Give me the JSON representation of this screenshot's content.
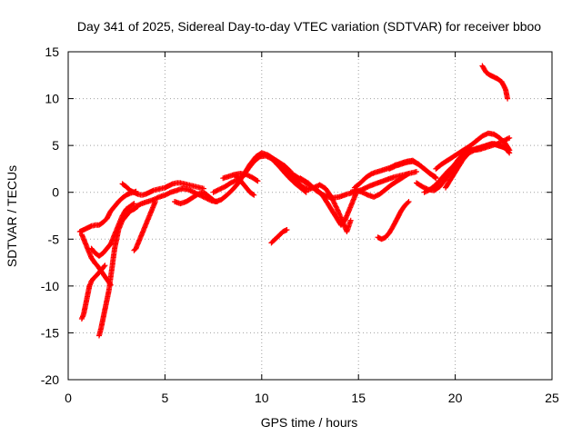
{
  "chart_data": {
    "type": "scatter",
    "title": "Day 341 of 2025, Sidereal Day-to-day VTEC variation (SDTVAR) for receiver bboo",
    "xlabel": "GPS time / hours",
    "ylabel": "SDTVAR / TECUs",
    "xlim": [
      0,
      25
    ],
    "ylim": [
      -20,
      15
    ],
    "xticks": [
      "0",
      "5",
      "10",
      "15",
      "20",
      "25"
    ],
    "yticks": [
      "-20",
      "-15",
      "-10",
      "-5",
      "0",
      "5",
      "10",
      "15"
    ],
    "grid": true,
    "marker": "+",
    "color": "#ff0000",
    "series": [
      {
        "x": [
          0.6,
          0.8,
          1.0,
          1.2,
          1.4,
          1.6,
          1.8,
          2.0,
          2.2,
          2.4,
          2.6,
          2.8,
          3.0,
          3.2,
          3.4,
          3.5
        ],
        "y": [
          -4.2,
          -4.0,
          -3.8,
          -3.6,
          -3.5,
          -3.5,
          -3.2,
          -2.8,
          -2.0,
          -1.5,
          -1.0,
          -0.6,
          -0.3,
          -0.1,
          0.0,
          0.1
        ]
      },
      {
        "x": [
          0.7,
          0.8,
          0.9,
          1.0,
          1.1,
          1.2,
          1.3,
          1.4,
          1.5,
          1.6,
          1.7,
          1.8,
          1.9,
          2.0,
          2.1,
          2.2
        ],
        "y": [
          -4.5,
          -5.0,
          -5.5,
          -6.0,
          -6.5,
          -7.0,
          -7.3,
          -7.6,
          -7.8,
          -8.1,
          -8.4,
          -8.7,
          -9.0,
          -9.3,
          -9.6,
          -9.9
        ]
      },
      {
        "x": [
          0.7,
          0.8,
          0.9,
          1.0,
          1.1,
          1.2,
          1.3,
          1.5,
          1.7,
          1.9
        ],
        "y": [
          -13.5,
          -13.0,
          -12.0,
          -11.0,
          -10.0,
          -9.5,
          -9.2,
          -8.8,
          -8.3,
          -7.8
        ]
      },
      {
        "x": [
          1.6,
          1.7,
          1.8,
          1.9,
          2.0,
          2.1,
          2.2,
          2.3,
          2.4,
          2.5,
          2.6,
          2.7,
          2.8,
          3.0,
          3.2,
          3.4,
          3.6
        ],
        "y": [
          -15.3,
          -14.5,
          -13.5,
          -12.5,
          -11.5,
          -10.5,
          -9.0,
          -7.5,
          -6.0,
          -5.0,
          -4.0,
          -3.5,
          -3.0,
          -2.5,
          -2.0,
          -1.8,
          -1.5
        ]
      },
      {
        "x": [
          1.2,
          1.4,
          1.6,
          1.8,
          2.0,
          2.2,
          2.4,
          2.6,
          2.8,
          3.0,
          3.2,
          3.4
        ],
        "y": [
          -6.0,
          -6.5,
          -6.8,
          -6.5,
          -6.0,
          -5.5,
          -4.5,
          -3.5,
          -2.5,
          -1.8,
          -1.5,
          -1.2
        ]
      },
      {
        "x": [
          3.4,
          3.5,
          3.6,
          3.7,
          3.8,
          3.9,
          4.0,
          4.1,
          4.2,
          4.3,
          4.4,
          4.5
        ],
        "y": [
          -6.2,
          -6.0,
          -5.5,
          -5.0,
          -4.5,
          -4.0,
          -3.5,
          -3.0,
          -2.5,
          -2.0,
          -1.5,
          -1.0
        ]
      },
      {
        "x": [
          2.8,
          3.0,
          3.2,
          3.4,
          3.6,
          3.8,
          4.0,
          4.2,
          4.4,
          4.6,
          4.8,
          5.0,
          5.2,
          5.4,
          5.6,
          5.8,
          6.0,
          6.2,
          6.4,
          6.6,
          6.8,
          7.0
        ],
        "y": [
          0.9,
          0.6,
          0.2,
          0.0,
          -0.2,
          -0.3,
          -0.2,
          0.0,
          0.2,
          0.3,
          0.4,
          0.5,
          0.7,
          0.9,
          1.0,
          1.0,
          0.9,
          0.8,
          0.7,
          0.6,
          0.5,
          0.4
        ]
      },
      {
        "x": [
          3.5,
          3.8,
          4.1,
          4.4,
          4.7,
          5.0,
          5.3,
          5.6,
          5.9,
          6.2,
          6.5,
          6.8,
          7.1,
          7.4,
          7.7
        ],
        "y": [
          -1.5,
          -1.2,
          -1.0,
          -0.8,
          -0.5,
          -0.3,
          0.0,
          0.2,
          0.4,
          0.3,
          0.0,
          -0.3,
          -0.6,
          -0.9,
          -1.0
        ]
      },
      {
        "x": [
          5.5,
          5.8,
          6.1,
          6.4,
          6.7,
          7.0,
          7.3,
          7.6,
          7.9,
          8.2,
          8.5,
          8.8,
          9.1,
          9.4,
          9.7,
          10.0,
          10.3,
          10.6,
          10.9,
          11.2,
          11.5
        ],
        "y": [
          -1.0,
          -1.2,
          -1.0,
          -0.6,
          -0.2,
          0.0,
          -0.5,
          -1.0,
          -0.8,
          -0.3,
          0.3,
          1.0,
          2.0,
          3.0,
          3.8,
          4.2,
          4.0,
          3.6,
          3.2,
          2.8,
          2.2
        ]
      },
      {
        "x": [
          7.5,
          7.8,
          8.1,
          8.4,
          8.7,
          9.0,
          9.3,
          9.6,
          9.9,
          10.2,
          10.5,
          10.8,
          11.1,
          11.4,
          11.7,
          12.0,
          12.3
        ],
        "y": [
          0.0,
          0.3,
          0.6,
          1.0,
          1.3,
          1.6,
          2.5,
          3.3,
          3.8,
          3.9,
          3.6,
          3.0,
          2.3,
          1.6,
          1.0,
          0.5,
          0.0
        ]
      },
      {
        "x": [
          8.0,
          8.3,
          8.6,
          8.9,
          9.2,
          9.5,
          9.8
        ],
        "y": [
          1.5,
          1.7,
          1.9,
          2.0,
          1.9,
          1.6,
          1.2
        ]
      },
      {
        "x": [
          8.6,
          8.8,
          9.0,
          9.2,
          9.4,
          9.6
        ],
        "y": [
          1.8,
          1.5,
          1.0,
          0.5,
          0.0,
          -0.3
        ]
      },
      {
        "x": [
          10.5,
          10.7,
          10.9,
          11.1,
          11.3
        ],
        "y": [
          -5.4,
          -5.0,
          -4.6,
          -4.2,
          -4.0
        ]
      },
      {
        "x": [
          10.8,
          11.1,
          11.4,
          11.7,
          12.0,
          12.3,
          12.6,
          12.9,
          13.2,
          13.5,
          13.8,
          14.1,
          14.3,
          14.5,
          14.7,
          14.9
        ],
        "y": [
          3.0,
          2.6,
          2.2,
          1.8,
          1.4,
          1.0,
          0.6,
          0.2,
          -0.5,
          -1.5,
          -2.5,
          -3.5,
          -3.0,
          -2.0,
          -1.0,
          0.0
        ]
      },
      {
        "x": [
          11.2,
          11.5,
          11.8,
          12.1,
          12.4,
          12.7,
          13.0,
          13.3,
          13.6,
          13.9,
          14.2,
          14.4,
          14.6
        ],
        "y": [
          2.5,
          2.0,
          1.2,
          0.6,
          0.3,
          0.5,
          0.8,
          0.4,
          -0.5,
          -1.8,
          -3.2,
          -4.2,
          -3.0
        ]
      },
      {
        "x": [
          12.0,
          12.4,
          12.8,
          13.2,
          13.6,
          14.0,
          14.4,
          14.8,
          15.2,
          15.6,
          16.0,
          16.4,
          16.8,
          17.2,
          17.6,
          18.0
        ],
        "y": [
          1.5,
          1.0,
          0.2,
          -0.3,
          -0.6,
          -0.5,
          -0.2,
          0.0,
          0.3,
          0.7,
          1.0,
          1.3,
          1.6,
          1.8,
          2.0,
          2.2
        ]
      },
      {
        "x": [
          14.8,
          15.1,
          15.4,
          15.7,
          16.0,
          16.3,
          16.6,
          16.9,
          17.2,
          17.5,
          17.8,
          18.1,
          18.4,
          18.7,
          19.0
        ],
        "y": [
          0.5,
          1.0,
          1.6,
          2.0,
          2.2,
          2.4,
          2.6,
          2.9,
          3.1,
          3.3,
          3.4,
          3.0,
          2.5,
          2.0,
          1.6
        ]
      },
      {
        "x": [
          14.6,
          14.9,
          15.2,
          15.5,
          15.8,
          16.1,
          16.4,
          16.7,
          17.0,
          17.3,
          17.6
        ],
        "y": [
          0.0,
          0.2,
          0.0,
          -0.3,
          -0.5,
          -0.2,
          0.3,
          0.8,
          1.2,
          1.6,
          2.0
        ]
      },
      {
        "x": [
          16.0,
          16.2,
          16.4,
          16.6,
          16.8,
          17.0,
          17.2,
          17.4,
          17.6
        ],
        "y": [
          -4.8,
          -5.0,
          -4.8,
          -4.3,
          -3.6,
          -2.8,
          -2.0,
          -1.4,
          -1.0
        ]
      },
      {
        "x": [
          16.6,
          16.9,
          17.2,
          17.5,
          17.8,
          18.1,
          18.4,
          18.7,
          19.0
        ],
        "y": [
          2.5,
          2.8,
          3.0,
          3.2,
          3.3,
          3.0,
          2.5,
          2.0,
          1.5
        ]
      },
      {
        "x": [
          18.0,
          18.3,
          18.6,
          18.9,
          19.2,
          19.5,
          19.8,
          20.1,
          20.4,
          20.7,
          21.0,
          21.3,
          21.6,
          21.9,
          22.2,
          22.5,
          22.8
        ],
        "y": [
          1.0,
          0.6,
          0.3,
          0.2,
          0.6,
          1.4,
          2.2,
          3.2,
          4.0,
          4.4,
          4.6,
          4.8,
          5.0,
          5.2,
          5.0,
          4.8,
          4.5
        ]
      },
      {
        "x": [
          18.4,
          18.7,
          19.0,
          19.3,
          19.6,
          19.9,
          20.2,
          20.5,
          20.8,
          21.1,
          21.4,
          21.7,
          22.0,
          22.3,
          22.6,
          22.8
        ],
        "y": [
          0.0,
          0.3,
          0.8,
          1.5,
          2.2,
          2.8,
          3.6,
          4.2,
          4.5,
          4.6,
          4.8,
          5.0,
          5.2,
          5.0,
          4.7,
          4.2
        ]
      },
      {
        "x": [
          19.0,
          19.3,
          19.6,
          19.9,
          20.2,
          20.5,
          20.8,
          21.1,
          21.4,
          21.7,
          22.0,
          22.3,
          22.6,
          22.8
        ],
        "y": [
          2.5,
          3.0,
          3.4,
          3.8,
          4.2,
          4.6,
          5.0,
          5.5,
          6.0,
          6.3,
          6.2,
          5.8,
          5.2,
          4.5
        ]
      },
      {
        "x": [
          19.5,
          19.8,
          20.1,
          20.4,
          20.7,
          21.0,
          21.3,
          21.6,
          21.9,
          22.2,
          22.5,
          22.8
        ],
        "y": [
          0.5,
          1.5,
          2.5,
          3.5,
          4.2,
          4.5,
          4.6,
          4.8,
          5.0,
          5.2,
          5.5,
          5.8
        ]
      },
      {
        "x": [
          21.4,
          21.6,
          21.8,
          22.0,
          22.2,
          22.4,
          22.6,
          22.7
        ],
        "y": [
          13.5,
          12.8,
          12.5,
          12.3,
          12.1,
          11.8,
          11.0,
          10.0
        ]
      }
    ]
  }
}
